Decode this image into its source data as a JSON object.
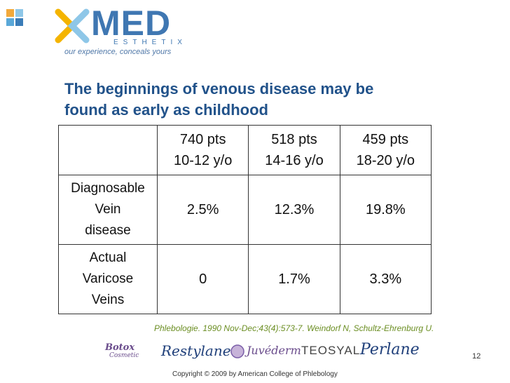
{
  "logo": {
    "text": "MED",
    "sub": "ESTHETIX",
    "tagline": "our experience, conceals yours"
  },
  "slide": {
    "title_line1": "The beginnings of venous disease may be",
    "title_line2": "found as early as childhood"
  },
  "table": {
    "columns": [
      {
        "pts": "740 pts",
        "age": "10-12 y/o"
      },
      {
        "pts": "518 pts",
        "age": "14-16 y/o"
      },
      {
        "pts": "459 pts",
        "age": "18-20 y/o"
      }
    ],
    "rows": [
      {
        "label_lines": [
          "Diagnosable",
          "Vein",
          "disease"
        ],
        "values": [
          "2.5%",
          "12.3%",
          "19.8%"
        ]
      },
      {
        "label_lines": [
          "Actual",
          "Varicose",
          "Veins"
        ],
        "values": [
          "0",
          "1.7%",
          "3.3%"
        ]
      }
    ]
  },
  "citation": "Phlebologie. 1990 Nov-Dec;43(4):573-7. Weindorf N, Schultz-Ehrenburg U.",
  "brands": {
    "botox": "Botox",
    "botox_sub": "Cosmetic",
    "restylane": "Restylane",
    "juvederm": "Juvéderm",
    "teosyal": "TEOSYAL",
    "perlane": "Perlane"
  },
  "page_number": "12",
  "copyright": "Copyright © 2009 by American College of Phlebology",
  "colors": {
    "title": "#21528a",
    "logo": "#3f77b2",
    "citation": "#6b8e23"
  }
}
